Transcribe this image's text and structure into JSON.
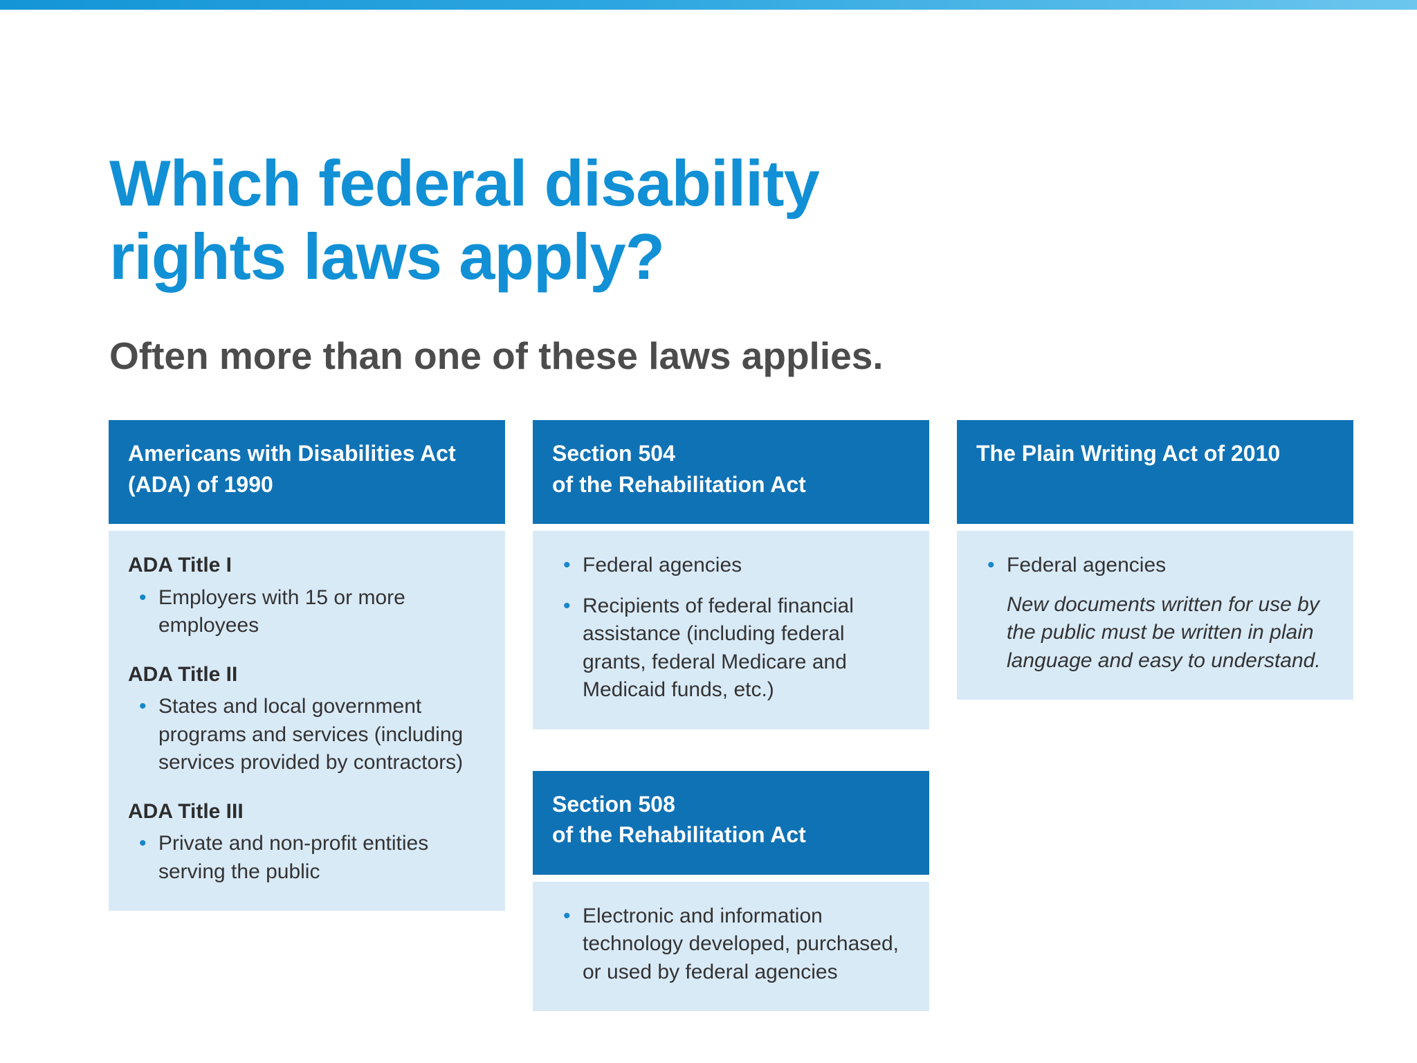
{
  "slide": {
    "title_line1": "Which federal disability",
    "title_line2": "rights laws apply?",
    "subtitle": "Often more than one of these laws applies."
  },
  "colors": {
    "title_blue": "#1190d5",
    "header_bar_blue": "#0f72b5",
    "card_body_blue": "#d9eaf7",
    "bullet_blue": "#1586c8",
    "subtitle_gray": "#4c4c4c",
    "top_strip_blue": "#2ea7e0"
  },
  "cards": {
    "ada": {
      "header_lines": [
        "Americans with Disabilities Act",
        "(ADA) of 1990"
      ],
      "sections": [
        {
          "title": "ADA Title I",
          "bullets": [
            "Employers with 15 or more employees"
          ]
        },
        {
          "title": "ADA Title II",
          "bullets": [
            "States and local government programs and services (including services provided by contractors)"
          ]
        },
        {
          "title": "ADA Title III",
          "bullets": [
            "Private and non-profit entities serving the public"
          ]
        }
      ]
    },
    "s504": {
      "header_lines": [
        "Section 504",
        "of the Rehabilitation Act"
      ],
      "bullets": [
        "Federal agencies",
        "Recipients of federal financial assistance (including federal grants, federal Medicare and Medicaid funds, etc.)"
      ]
    },
    "s508": {
      "header_lines": [
        "Section 508",
        "of the Rehabilitation Act"
      ],
      "bullets": [
        "Electronic and information technology developed, purchased, or used by federal agencies"
      ]
    },
    "plain": {
      "header_lines": [
        "The Plain Writing Act of 2010"
      ],
      "bullets": [
        "Federal agencies"
      ],
      "note": "New documents written for use by the public must be written in plain language and easy to understand."
    }
  }
}
